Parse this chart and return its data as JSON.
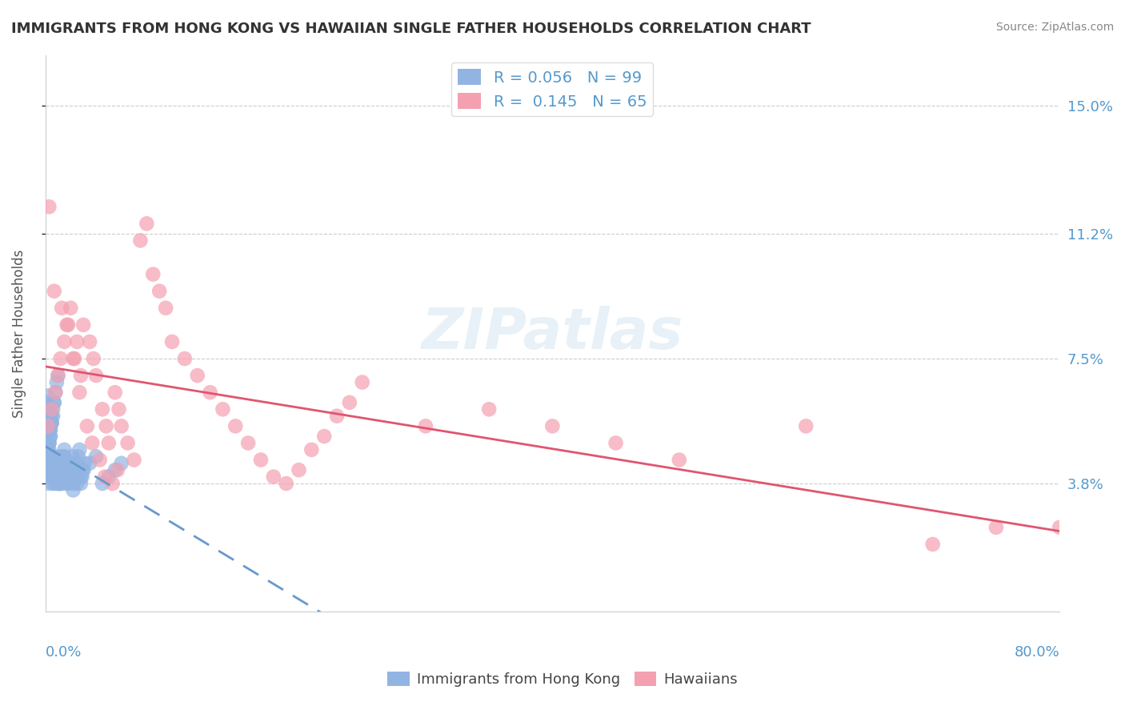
{
  "title": "IMMIGRANTS FROM HONG KONG VS HAWAIIAN SINGLE FATHER HOUSEHOLDS CORRELATION CHART",
  "source": "Source: ZipAtlas.com",
  "ylabel": "Single Father Households",
  "xlim": [
    0.0,
    0.8
  ],
  "ylim": [
    0.0,
    0.165
  ],
  "yticks": [
    0.038,
    0.075,
    0.112,
    0.15
  ],
  "ytick_labels": [
    "3.8%",
    "7.5%",
    "11.2%",
    "15.0%"
  ],
  "legend_blue_r": "R = 0.056",
  "legend_blue_n": "N = 99",
  "legend_pink_r": "R =  0.145",
  "legend_pink_n": "N = 65",
  "blue_color": "#92b4e3",
  "pink_color": "#f4a0b0",
  "blue_line_color": "#6699cc",
  "pink_line_color": "#e05570",
  "grid_color": "#cccccc",
  "axis_label_color": "#5599cc",
  "blue_scatter_x": [
    0.001,
    0.002,
    0.001,
    0.003,
    0.002,
    0.001,
    0.004,
    0.003,
    0.002,
    0.001,
    0.005,
    0.003,
    0.002,
    0.006,
    0.004,
    0.002,
    0.007,
    0.005,
    0.003,
    0.001,
    0.008,
    0.006,
    0.004,
    0.002,
    0.009,
    0.007,
    0.005,
    0.003,
    0.001,
    0.01,
    0.012,
    0.014,
    0.016,
    0.018,
    0.02,
    0.015,
    0.013,
    0.011,
    0.009,
    0.008,
    0.022,
    0.025,
    0.028,
    0.03,
    0.035,
    0.04,
    0.045,
    0.05,
    0.055,
    0.06,
    0.001,
    0.002,
    0.003,
    0.001,
    0.002,
    0.003,
    0.004,
    0.005,
    0.001,
    0.002,
    0.006,
    0.007,
    0.008,
    0.009,
    0.01,
    0.011,
    0.012,
    0.013,
    0.014,
    0.015,
    0.003,
    0.004,
    0.005,
    0.006,
    0.007,
    0.008,
    0.009,
    0.01,
    0.011,
    0.012,
    0.013,
    0.014,
    0.015,
    0.016,
    0.017,
    0.018,
    0.019,
    0.02,
    0.021,
    0.022,
    0.023,
    0.024,
    0.025,
    0.026,
    0.027,
    0.028,
    0.029,
    0.03,
    0.031
  ],
  "blue_scatter_y": [
    0.05,
    0.045,
    0.04,
    0.055,
    0.048,
    0.042,
    0.052,
    0.046,
    0.043,
    0.041,
    0.058,
    0.05,
    0.044,
    0.06,
    0.054,
    0.046,
    0.062,
    0.056,
    0.048,
    0.042,
    0.065,
    0.058,
    0.052,
    0.046,
    0.068,
    0.062,
    0.056,
    0.05,
    0.044,
    0.07,
    0.038,
    0.042,
    0.04,
    0.038,
    0.044,
    0.046,
    0.04,
    0.038,
    0.042,
    0.04,
    0.036,
    0.038,
    0.04,
    0.042,
    0.044,
    0.046,
    0.038,
    0.04,
    0.042,
    0.044,
    0.055,
    0.052,
    0.058,
    0.06,
    0.048,
    0.05,
    0.054,
    0.056,
    0.062,
    0.064,
    0.038,
    0.04,
    0.042,
    0.044,
    0.038,
    0.04,
    0.042,
    0.044,
    0.046,
    0.048,
    0.038,
    0.04,
    0.042,
    0.044,
    0.046,
    0.038,
    0.04,
    0.042,
    0.044,
    0.046,
    0.038,
    0.04,
    0.042,
    0.044,
    0.038,
    0.04,
    0.042,
    0.044,
    0.046,
    0.038,
    0.04,
    0.042,
    0.044,
    0.046,
    0.048,
    0.038,
    0.04,
    0.042,
    0.044
  ],
  "pink_scatter_x": [
    0.002,
    0.005,
    0.008,
    0.01,
    0.012,
    0.015,
    0.018,
    0.02,
    0.022,
    0.025,
    0.028,
    0.03,
    0.035,
    0.038,
    0.04,
    0.045,
    0.048,
    0.05,
    0.055,
    0.058,
    0.06,
    0.065,
    0.07,
    0.075,
    0.08,
    0.085,
    0.09,
    0.095,
    0.1,
    0.11,
    0.12,
    0.13,
    0.14,
    0.15,
    0.16,
    0.17,
    0.18,
    0.19,
    0.2,
    0.21,
    0.22,
    0.23,
    0.24,
    0.25,
    0.3,
    0.35,
    0.4,
    0.45,
    0.5,
    0.6,
    0.003,
    0.007,
    0.013,
    0.017,
    0.023,
    0.027,
    0.033,
    0.037,
    0.043,
    0.047,
    0.053,
    0.057,
    0.75,
    0.8,
    0.7
  ],
  "pink_scatter_y": [
    0.055,
    0.06,
    0.065,
    0.07,
    0.075,
    0.08,
    0.085,
    0.09,
    0.075,
    0.08,
    0.07,
    0.085,
    0.08,
    0.075,
    0.07,
    0.06,
    0.055,
    0.05,
    0.065,
    0.06,
    0.055,
    0.05,
    0.045,
    0.11,
    0.115,
    0.1,
    0.095,
    0.09,
    0.08,
    0.075,
    0.07,
    0.065,
    0.06,
    0.055,
    0.05,
    0.045,
    0.04,
    0.038,
    0.042,
    0.048,
    0.052,
    0.058,
    0.062,
    0.068,
    0.055,
    0.06,
    0.055,
    0.05,
    0.045,
    0.055,
    0.12,
    0.095,
    0.09,
    0.085,
    0.075,
    0.065,
    0.055,
    0.05,
    0.045,
    0.04,
    0.038,
    0.042,
    0.025,
    0.025,
    0.02
  ]
}
